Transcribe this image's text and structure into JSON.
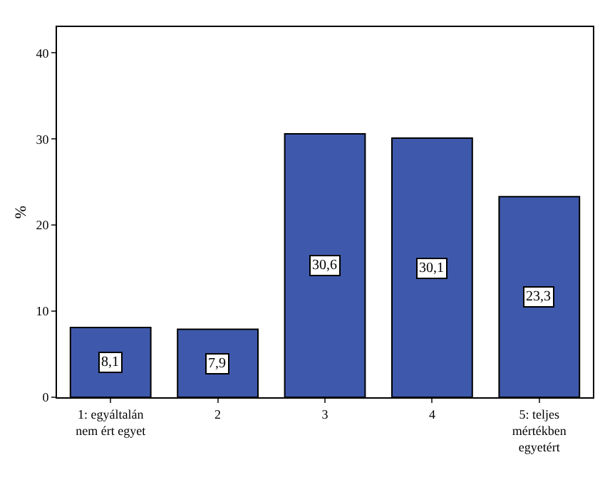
{
  "chart_data": {
    "type": "bar",
    "ylabel": "%",
    "categories": [
      "1: egyáltalán nem ért egyet",
      "2",
      "3",
      "4",
      "5: teljes mértékben egyetért"
    ],
    "values": [
      8.1,
      7.9,
      30.6,
      30.1,
      23.3
    ],
    "value_labels": [
      "8,1",
      "7,9",
      "30,6",
      "30,1",
      "23,3"
    ],
    "color": "#3e59ab",
    "ylim": [
      0,
      43
    ],
    "yticks": [
      0,
      10,
      20,
      30,
      40
    ]
  }
}
